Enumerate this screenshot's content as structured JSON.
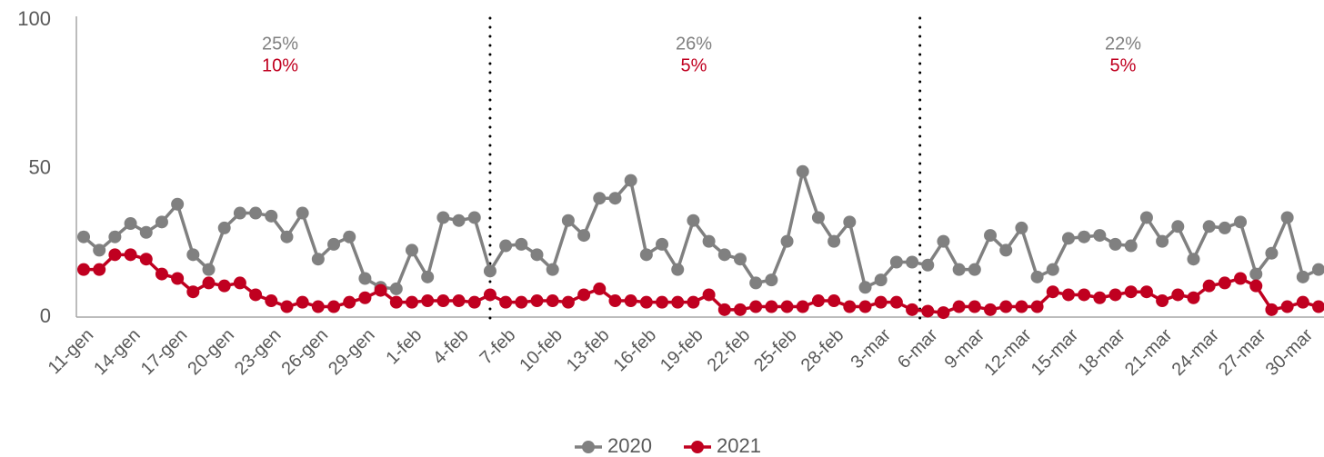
{
  "chart_data": {
    "type": "line",
    "categories": [
      "11-gen",
      null,
      null,
      "14-gen",
      null,
      null,
      "17-gen",
      null,
      null,
      "20-gen",
      null,
      null,
      "23-gen",
      null,
      null,
      "26-gen",
      null,
      null,
      "29-gen",
      null,
      null,
      "1-feb",
      null,
      null,
      "4-feb",
      null,
      null,
      "7-feb",
      null,
      null,
      "10-feb",
      null,
      null,
      "13-feb",
      null,
      null,
      "16-feb",
      null,
      null,
      "19-feb",
      null,
      null,
      "22-feb",
      null,
      null,
      "25-feb",
      null,
      null,
      "28-feb",
      null,
      null,
      "3-mar",
      null,
      null,
      "6-mar",
      null,
      null,
      "9-mar",
      null,
      null,
      "12-mar",
      null,
      null,
      "15-mar",
      null,
      null,
      "18-mar",
      null,
      null,
      "21-mar",
      null,
      null,
      "24-mar",
      null,
      null,
      "27-mar",
      null,
      null,
      "30-mar",
      null
    ],
    "series": [
      {
        "name": "2020",
        "color": "#808080",
        "values": [
          27,
          22.5,
          27,
          31.5,
          28.5,
          32,
          38,
          21,
          16,
          30,
          35,
          35,
          34,
          27,
          35,
          19.5,
          24.5,
          27,
          13,
          10,
          9.5,
          22.5,
          13.5,
          33.5,
          32.5,
          33.5,
          15.5,
          24,
          24.5,
          21,
          16,
          32.5,
          27.5,
          40,
          40,
          46,
          21,
          24.5,
          16,
          32.5,
          25.5,
          21,
          19.5,
          11.5,
          12.5,
          25.5,
          49,
          33.5,
          25.5,
          32,
          10,
          12.5,
          18.5,
          18.5,
          17.5,
          25.5,
          16,
          16,
          27.5,
          22.5,
          30,
          13.5,
          16,
          26.5,
          27,
          27.5,
          24.5,
          24,
          33.5,
          25.5,
          30.5,
          19.5,
          30.5,
          30,
          32,
          14.5,
          21.5,
          33.5,
          13.5,
          16
        ]
      },
      {
        "name": "2021",
        "color": "#c00020",
        "values": [
          16,
          16,
          21,
          21,
          19.5,
          14.5,
          13,
          8.5,
          11.5,
          10.5,
          11.5,
          7.5,
          5.5,
          3.5,
          5,
          3.5,
          3.5,
          5,
          6.5,
          9,
          5,
          5,
          5.5,
          5.5,
          5.5,
          5,
          7.5,
          5,
          5,
          5.5,
          5.5,
          5,
          7.5,
          9.5,
          5.5,
          5.5,
          5,
          5,
          5,
          5,
          7.5,
          2.5,
          2.5,
          3.5,
          3.5,
          3.5,
          3.5,
          5.5,
          5.5,
          3.5,
          3.5,
          5,
          5,
          2.5,
          2,
          1.5,
          3.5,
          3.5,
          2.5,
          3.5,
          3.5,
          3.5,
          8.5,
          7.5,
          7.5,
          6.5,
          7.5,
          8.5,
          8.5,
          5.5,
          7.5,
          6.5,
          10.5,
          11.5,
          13,
          10.5,
          2.5,
          3.5,
          5,
          3.5
        ]
      }
    ],
    "annotations": [
      [
        "25%",
        "10%"
      ],
      [
        "26%",
        "5%"
      ],
      [
        "22%",
        "5%"
      ]
    ],
    "ylim": [
      0,
      100
    ],
    "yticks": [
      0,
      50,
      100
    ],
    "grid": false,
    "legend": "bottom"
  }
}
